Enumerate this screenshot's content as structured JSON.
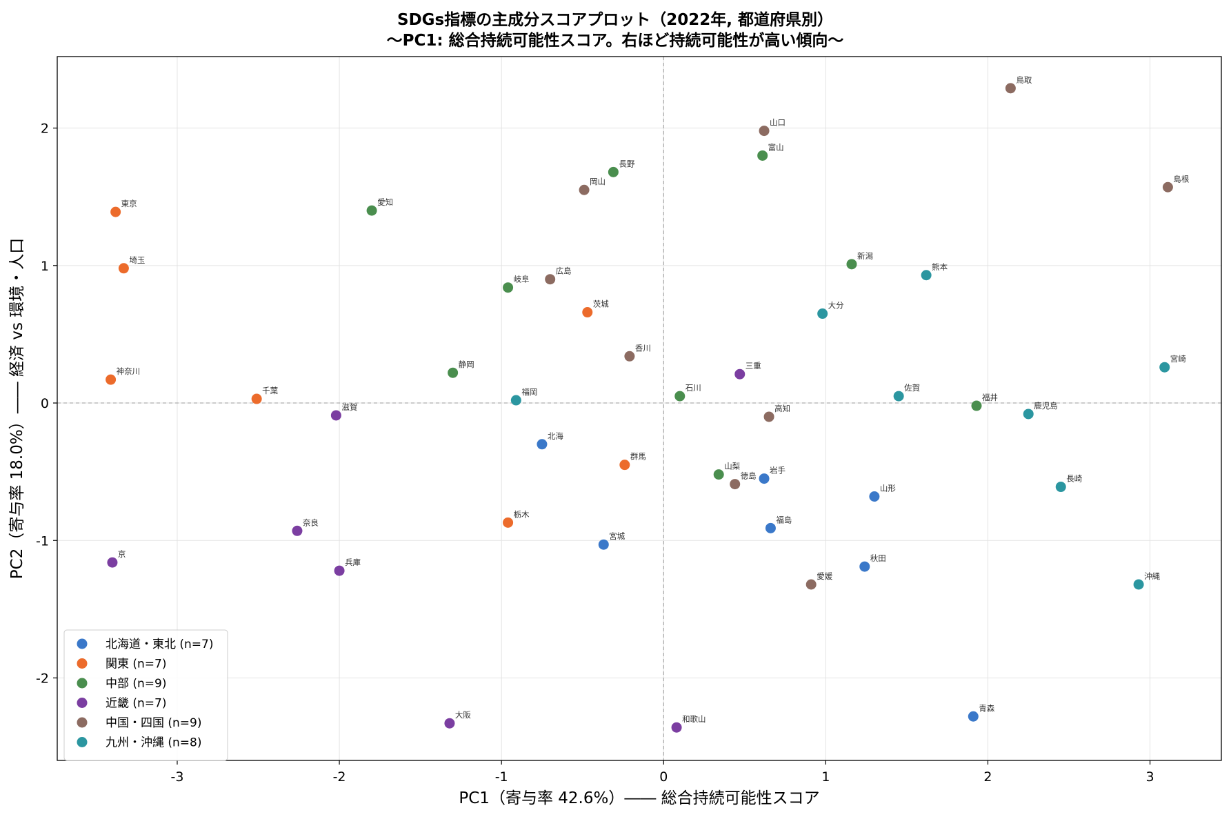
{
  "chart_data": {
    "type": "scatter",
    "title_lines": [
      "SDGs指標の主成分スコアプロット（2022年, 都道府県別）",
      "〜PC1: 総合持続可能性スコア。右ほど持続可能性が高い傾向〜"
    ],
    "xlabel": "PC1（寄与率 42.6%）―― 総合持続可能性スコア",
    "ylabel": "PC2（寄与率 18.0%）―― 経済 vs 環境・人口",
    "xlim": [
      -3.74,
      3.44
    ],
    "ylim": [
      -2.6,
      2.52
    ],
    "xticks": [
      -3,
      -2,
      -1,
      0,
      1,
      2,
      3
    ],
    "yticks": [
      -2,
      -1,
      0,
      1,
      2
    ],
    "grid": true,
    "zero_lines": true,
    "legend_position": "lower-left",
    "series": [
      {
        "name": "北海道・東北 (n=7)",
        "color": "#3a78c9",
        "points": [
          {
            "label": "北海",
            "x": -0.75,
            "y": -0.3
          },
          {
            "label": "岩手",
            "x": 0.62,
            "y": -0.55
          },
          {
            "label": "山形",
            "x": 1.3,
            "y": -0.68
          },
          {
            "label": "福島",
            "x": 0.66,
            "y": -0.91
          },
          {
            "label": "宮城",
            "x": -0.37,
            "y": -1.03
          },
          {
            "label": "秋田",
            "x": 1.24,
            "y": -1.19
          },
          {
            "label": "青森",
            "x": 1.91,
            "y": -2.28
          }
        ]
      },
      {
        "name": "関東 (n=7)",
        "color": "#ec6b2b",
        "points": [
          {
            "label": "東京",
            "x": -3.38,
            "y": 1.39
          },
          {
            "label": "埼玉",
            "x": -3.33,
            "y": 0.98
          },
          {
            "label": "神奈川",
            "x": -3.41,
            "y": 0.17
          },
          {
            "label": "千葉",
            "x": -2.51,
            "y": 0.03
          },
          {
            "label": "茨城",
            "x": -0.47,
            "y": 0.66
          },
          {
            "label": "群馬",
            "x": -0.24,
            "y": -0.45
          },
          {
            "label": "栃木",
            "x": -0.96,
            "y": -0.87
          }
        ]
      },
      {
        "name": "中部 (n=9)",
        "color": "#4a8e4e",
        "points": [
          {
            "label": "愛知",
            "x": -1.8,
            "y": 1.4
          },
          {
            "label": "長野",
            "x": -0.31,
            "y": 1.68
          },
          {
            "label": "富山",
            "x": 0.61,
            "y": 1.8
          },
          {
            "label": "岐阜",
            "x": -0.96,
            "y": 0.84
          },
          {
            "label": "静岡",
            "x": -1.3,
            "y": 0.22
          },
          {
            "label": "石川",
            "x": 0.1,
            "y": 0.05
          },
          {
            "label": "新潟",
            "x": 1.16,
            "y": 1.01
          },
          {
            "label": "福井",
            "x": 1.93,
            "y": -0.02
          },
          {
            "label": "山梨",
            "x": 0.34,
            "y": -0.52
          }
        ]
      },
      {
        "name": "近畿 (n=7)",
        "color": "#7b3ea1",
        "points": [
          {
            "label": "滋賀",
            "x": -2.02,
            "y": -0.09
          },
          {
            "label": "奈良",
            "x": -2.26,
            "y": -0.93
          },
          {
            "label": "京",
            "x": -3.4,
            "y": -1.16
          },
          {
            "label": "兵庫",
            "x": -2.0,
            "y": -1.22
          },
          {
            "label": "三重",
            "x": 0.47,
            "y": 0.21
          },
          {
            "label": "大阪",
            "x": -1.32,
            "y": -2.33
          },
          {
            "label": "和歌山",
            "x": 0.08,
            "y": -2.36
          }
        ]
      },
      {
        "name": "中国・四国 (n=9)",
        "color": "#8c6b61",
        "points": [
          {
            "label": "鳥取",
            "x": 2.14,
            "y": 2.29
          },
          {
            "label": "山口",
            "x": 0.62,
            "y": 1.98
          },
          {
            "label": "岡山",
            "x": -0.49,
            "y": 1.55
          },
          {
            "label": "島根",
            "x": 3.11,
            "y": 1.57
          },
          {
            "label": "広島",
            "x": -0.7,
            "y": 0.9
          },
          {
            "label": "香川",
            "x": -0.21,
            "y": 0.34
          },
          {
            "label": "高知",
            "x": 0.65,
            "y": -0.1
          },
          {
            "label": "徳島",
            "x": 0.44,
            "y": -0.59
          },
          {
            "label": "愛媛",
            "x": 0.91,
            "y": -1.32
          }
        ]
      },
      {
        "name": "九州・沖縄 (n=8)",
        "color": "#2b96a0",
        "points": [
          {
            "label": "熊本",
            "x": 1.62,
            "y": 0.93
          },
          {
            "label": "大分",
            "x": 0.98,
            "y": 0.65
          },
          {
            "label": "宮崎",
            "x": 3.09,
            "y": 0.26
          },
          {
            "label": "佐賀",
            "x": 1.45,
            "y": 0.05
          },
          {
            "label": "福岡",
            "x": -0.91,
            "y": 0.02
          },
          {
            "label": "鹿児島",
            "x": 2.25,
            "y": -0.08
          },
          {
            "label": "長崎",
            "x": 2.45,
            "y": -0.61
          },
          {
            "label": "沖縄",
            "x": 2.93,
            "y": -1.32
          }
        ]
      }
    ]
  }
}
